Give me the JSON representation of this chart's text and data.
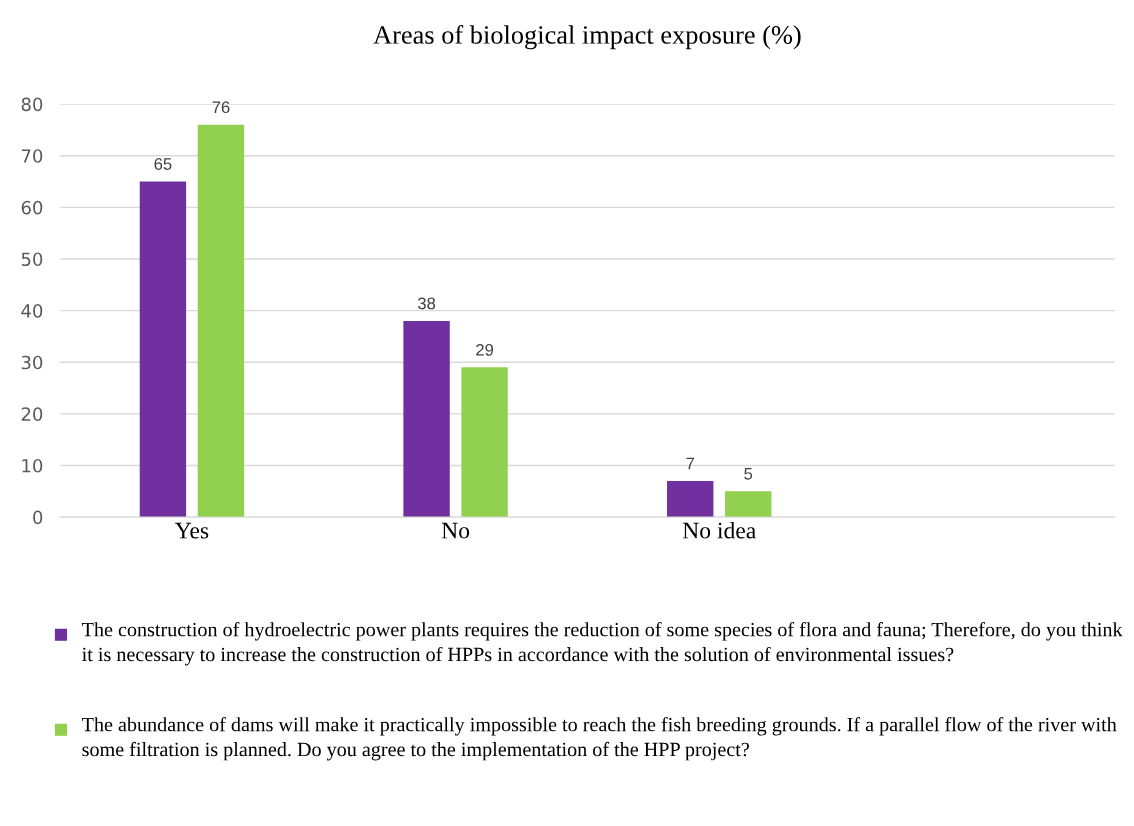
{
  "chart_data": {
    "type": "bar",
    "title": "Areas of biological impact exposure (%)",
    "categories": [
      "Yes",
      "No",
      "No idea",
      null
    ],
    "series": [
      {
        "name": "The construction of hydroelectric power plants requires the reduction of some species of flora and fauna; Therefore, do you think it is necessary to increase the construction of HPPs in accordance with the solution of environmental issues?",
        "color": "#7030a0",
        "values": [
          65,
          38,
          7,
          null
        ]
      },
      {
        "name": "The abundance of dams will make it practically impossible to reach the fish breeding grounds. If a parallel flow of the river with some filtration is planned. Do you agree to the implementation of the HPP project?",
        "color": "#92d050",
        "values": [
          76,
          29,
          5,
          null
        ]
      }
    ],
    "ylim": [
      0,
      80
    ],
    "yticks": [
      0,
      10,
      20,
      30,
      40,
      50,
      60,
      70,
      80
    ],
    "grid": "y",
    "legend": "bottom",
    "data_labels": true
  }
}
